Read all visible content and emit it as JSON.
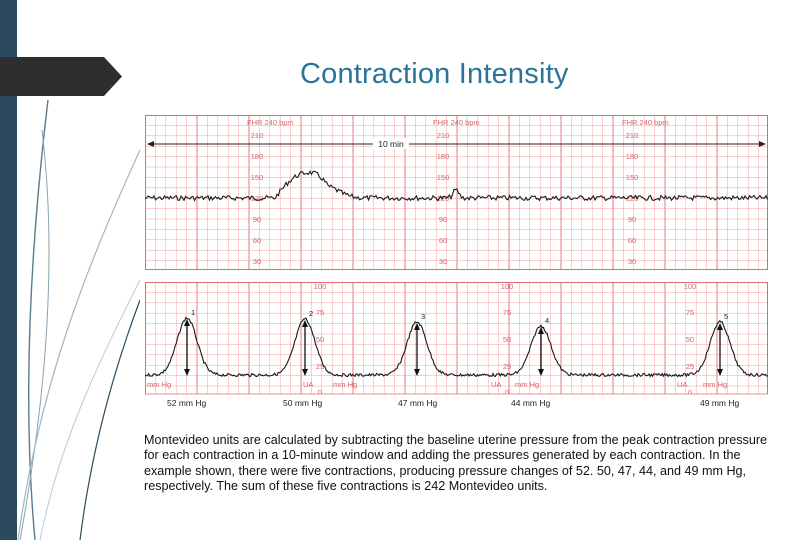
{
  "slide": {
    "title": "Contraction Intensity"
  },
  "fhr_strip": {
    "scale_header": "FHR 240 bpm",
    "tick_labels": [
      "210",
      "180",
      "150",
      "120",
      "90",
      "60",
      "30"
    ],
    "time_span_label": "10 min"
  },
  "ua_strip": {
    "tick_labels": [
      "100",
      "75",
      "50",
      "25",
      "0"
    ],
    "ua_label": "UA",
    "unit_label": "mm Hg",
    "contraction_numbers": [
      "1",
      "2",
      "3",
      "4",
      "5"
    ],
    "pressure_labels": [
      "52 mm Hg",
      "50 mm Hg",
      "47 mm Hg",
      "44 mm Hg",
      "49 mm Hg"
    ]
  },
  "caption": {
    "text": "Montevideo units are calculated by subtracting the baseline uterine pressure from the peak contraction pressure for each contraction in a 10-minute window and adding the pressures generated by each contraction. In the example shown, there were five contractions, producing pressure changes of 52. 50, 47, 44, and 49 mm Hg, respectively. The sum of these five contractions is 242 Montevideo units."
  },
  "colors": {
    "grid_line": "#f0a0a2",
    "grid_major": "#e06a6e",
    "trace": "#1a1a1a",
    "title": "#2a7598",
    "side_bar": "#2c4a5e"
  }
}
